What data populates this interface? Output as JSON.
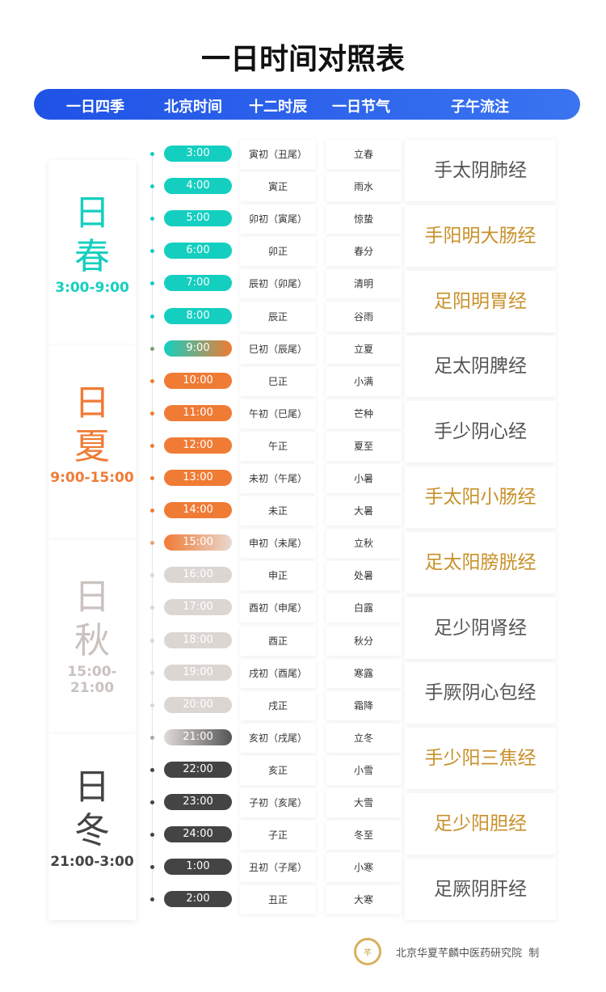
{
  "title": "一日时间对照表",
  "header": [
    "一日四季",
    "北京时间",
    "十二时辰",
    "一日节气",
    "子午流注"
  ],
  "colors": {
    "spring": "#14cfc0",
    "summer": "#f07b35",
    "autumn": "#c9c2bf",
    "winter": "#444444",
    "meridian_gray": "#555555",
    "meridian_gold": "#c8912a",
    "header_blue": "#2a60ea"
  },
  "seasons": [
    {
      "ri": "日",
      "name": "春",
      "range": "3:00-9:00"
    },
    {
      "ri": "日",
      "name": "夏",
      "range": "9:00-15:00"
    },
    {
      "ri": "日",
      "name": "秋",
      "range": "15:00-21:00"
    },
    {
      "ri": "日",
      "name": "冬",
      "range": "21:00-3:00"
    }
  ],
  "rows": [
    {
      "time": "3:00",
      "shichen": "寅初（丑尾）",
      "jieqi": "立春"
    },
    {
      "time": "4:00",
      "shichen": "寅正",
      "jieqi": "雨水"
    },
    {
      "time": "5:00",
      "shichen": "卯初（寅尾）",
      "jieqi": "惊蛰"
    },
    {
      "time": "6:00",
      "shichen": "卯正",
      "jieqi": "春分"
    },
    {
      "time": "7:00",
      "shichen": "辰初（卯尾）",
      "jieqi": "清明"
    },
    {
      "time": "8:00",
      "shichen": "辰正",
      "jieqi": "谷雨"
    },
    {
      "time": "9:00",
      "shichen": "巳初（辰尾）",
      "jieqi": "立夏"
    },
    {
      "time": "10:00",
      "shichen": "巳正",
      "jieqi": "小满"
    },
    {
      "time": "11:00",
      "shichen": "午初（巳尾）",
      "jieqi": "芒种"
    },
    {
      "time": "12:00",
      "shichen": "午正",
      "jieqi": "夏至"
    },
    {
      "time": "13:00",
      "shichen": "未初（午尾）",
      "jieqi": "小暑"
    },
    {
      "time": "14:00",
      "shichen": "未正",
      "jieqi": "大暑"
    },
    {
      "time": "15:00",
      "shichen": "申初（未尾）",
      "jieqi": "立秋"
    },
    {
      "time": "16:00",
      "shichen": "申正",
      "jieqi": "处暑"
    },
    {
      "time": "17:00",
      "shichen": "酉初（申尾）",
      "jieqi": "白露"
    },
    {
      "time": "18:00",
      "shichen": "酉正",
      "jieqi": "秋分"
    },
    {
      "time": "19:00",
      "shichen": "戌初（酉尾）",
      "jieqi": "寒露"
    },
    {
      "time": "20:00",
      "shichen": "戌正",
      "jieqi": "霜降"
    },
    {
      "time": "21:00",
      "shichen": "亥初（戌尾）",
      "jieqi": "立冬"
    },
    {
      "time": "22:00",
      "shichen": "亥正",
      "jieqi": "小雪"
    },
    {
      "time": "23:00",
      "shichen": "子初（亥尾）",
      "jieqi": "大雪"
    },
    {
      "time": "24:00",
      "shichen": "子正",
      "jieqi": "冬至"
    },
    {
      "time": "1:00",
      "shichen": "丑初（子尾）",
      "jieqi": "小寒"
    },
    {
      "time": "2:00",
      "shichen": "丑正",
      "jieqi": "大寒"
    }
  ],
  "meridians": [
    {
      "name": "手太阴肺经",
      "color": "gray"
    },
    {
      "name": "手阳明大肠经",
      "color": "gold"
    },
    {
      "name": "足阳明胃经",
      "color": "gold"
    },
    {
      "name": "足太阴脾经",
      "color": "gray"
    },
    {
      "name": "手少阴心经",
      "color": "gray"
    },
    {
      "name": "手太阳小肠经",
      "color": "gold"
    },
    {
      "name": "足太阳膀胱经",
      "color": "gold"
    },
    {
      "name": "足少阴肾经",
      "color": "gray"
    },
    {
      "name": "手厥阴心包经",
      "color": "gray"
    },
    {
      "name": "手少阳三焦经",
      "color": "gold"
    },
    {
      "name": "足少阳胆经",
      "color": "gold"
    },
    {
      "name": "足厥阴肝经",
      "color": "gray"
    }
  ],
  "footer": {
    "org": "北京华夏芊麟中医药研究院  制",
    "logo_text": "芊麟"
  }
}
